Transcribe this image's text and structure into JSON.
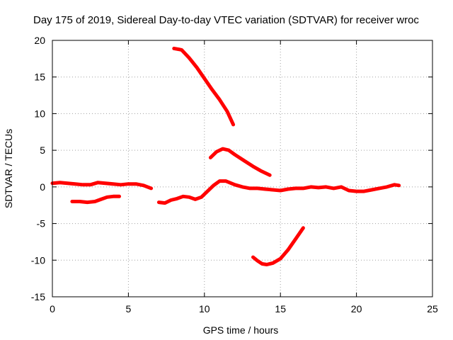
{
  "chart_data": {
    "type": "line",
    "title": "Day 175 of 2019, Sidereal Day-to-day VTEC variation (SDTVAR) for receiver wroc",
    "xlabel": "GPS time / hours",
    "ylabel": "SDTVAR / TECUs",
    "xlim": [
      0,
      25
    ],
    "ylim": [
      -15,
      20
    ],
    "xticks": [
      0,
      5,
      10,
      15,
      20,
      25
    ],
    "yticks": [
      -15,
      -10,
      -5,
      0,
      5,
      10,
      15,
      20
    ],
    "grid": true,
    "series_color": "#ff0000",
    "series": [
      {
        "name": "arc-1",
        "points": [
          [
            0,
            0.5
          ],
          [
            0.5,
            0.6
          ],
          [
            1,
            0.5
          ],
          [
            1.5,
            0.4
          ],
          [
            2,
            0.3
          ],
          [
            2.5,
            0.3
          ],
          [
            3,
            0.6
          ],
          [
            3.5,
            0.5
          ],
          [
            4,
            0.4
          ],
          [
            4.5,
            0.3
          ],
          [
            5,
            0.4
          ],
          [
            5.5,
            0.4
          ],
          [
            6,
            0.2
          ],
          [
            6.5,
            -0.2
          ]
        ]
      },
      {
        "name": "arc-2",
        "points": [
          [
            1.3,
            -2.0
          ],
          [
            1.8,
            -2.0
          ],
          [
            2.3,
            -2.1
          ],
          [
            2.8,
            -2.0
          ],
          [
            3.2,
            -1.7
          ],
          [
            3.6,
            -1.4
          ],
          [
            4.0,
            -1.3
          ],
          [
            4.4,
            -1.3
          ]
        ]
      },
      {
        "name": "arc-3",
        "points": [
          [
            7.0,
            -2.1
          ],
          [
            7.4,
            -2.2
          ],
          [
            7.8,
            -1.8
          ],
          [
            8.2,
            -1.6
          ],
          [
            8.6,
            -1.3
          ],
          [
            9.0,
            -1.4
          ],
          [
            9.4,
            -1.7
          ],
          [
            9.8,
            -1.4
          ],
          [
            10.2,
            -0.6
          ],
          [
            10.6,
            0.2
          ],
          [
            11.0,
            0.8
          ],
          [
            11.4,
            0.8
          ],
          [
            12.0,
            0.3
          ],
          [
            12.5,
            0.0
          ],
          [
            13.0,
            -0.2
          ],
          [
            13.5,
            -0.2
          ],
          [
            14.0,
            -0.3
          ],
          [
            14.5,
            -0.4
          ],
          [
            15.0,
            -0.5
          ],
          [
            15.5,
            -0.3
          ],
          [
            16.0,
            -0.2
          ],
          [
            16.5,
            -0.2
          ],
          [
            17.0,
            0.0
          ],
          [
            17.5,
            -0.1
          ],
          [
            18.0,
            0.0
          ],
          [
            18.5,
            -0.2
          ],
          [
            19.0,
            0.0
          ],
          [
            19.5,
            -0.5
          ],
          [
            20.0,
            -0.6
          ],
          [
            20.5,
            -0.6
          ],
          [
            21.0,
            -0.4
          ],
          [
            21.5,
            -0.2
          ],
          [
            22.0,
            0.0
          ],
          [
            22.5,
            0.3
          ],
          [
            22.8,
            0.2
          ]
        ]
      },
      {
        "name": "arc-4",
        "points": [
          [
            8.0,
            18.9
          ],
          [
            8.5,
            18.7
          ],
          [
            9.0,
            17.6
          ],
          [
            9.5,
            16.3
          ],
          [
            10.0,
            14.8
          ],
          [
            10.5,
            13.3
          ],
          [
            11.0,
            11.9
          ],
          [
            11.5,
            10.3
          ],
          [
            11.9,
            8.5
          ]
        ]
      },
      {
        "name": "arc-5",
        "points": [
          [
            10.4,
            4.0
          ],
          [
            10.8,
            4.8
          ],
          [
            11.2,
            5.2
          ],
          [
            11.6,
            5.0
          ],
          [
            12.0,
            4.4
          ],
          [
            12.6,
            3.6
          ],
          [
            13.2,
            2.8
          ],
          [
            13.7,
            2.2
          ],
          [
            14.3,
            1.6
          ]
        ]
      },
      {
        "name": "arc-6",
        "points": [
          [
            13.2,
            -9.6
          ],
          [
            13.5,
            -10.1
          ],
          [
            13.8,
            -10.5
          ],
          [
            14.1,
            -10.6
          ],
          [
            14.5,
            -10.4
          ],
          [
            15.0,
            -9.8
          ],
          [
            15.5,
            -8.6
          ],
          [
            16.0,
            -7.1
          ],
          [
            16.5,
            -5.6
          ]
        ]
      }
    ]
  }
}
